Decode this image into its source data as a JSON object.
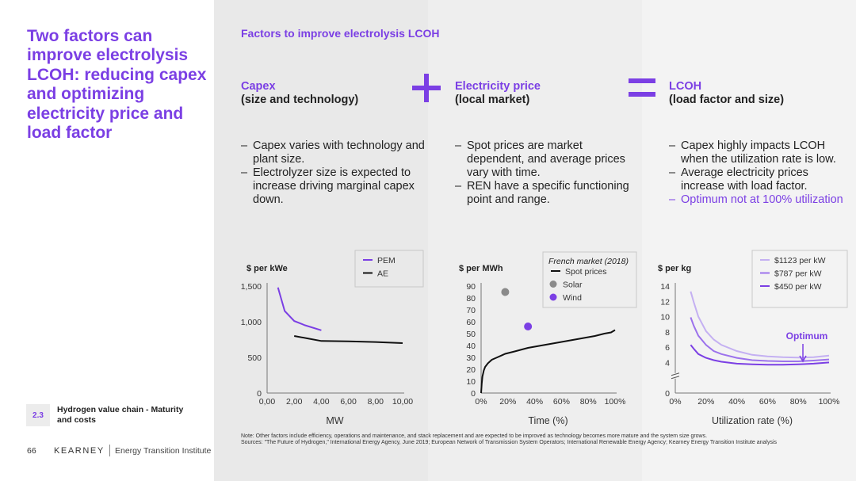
{
  "headline": "Two factors can improve electrolysis LCOH: reducing capex and optimizing electricity price and load factor",
  "section": {
    "number": "2.3",
    "text": "Hydrogen value chain - Maturity and costs"
  },
  "footer": {
    "page": "66",
    "brand": "KEARNEY",
    "sub": "Energy Transition Institute"
  },
  "panel_title": "Factors to improve electrolysis LCOH",
  "columns": [
    {
      "title": "Capex",
      "subtitle": "(size and technology)",
      "bullets": [
        {
          "text": "Capex varies with technology and plant size.",
          "highlight": false
        },
        {
          "text": "Electrolyzer size is expected to increase driving marginal capex down.",
          "highlight": false
        }
      ]
    },
    {
      "title": "Electricity price",
      "subtitle": "(local market)",
      "bullets": [
        {
          "text": "Spot prices are market dependent, and average prices vary with time.",
          "highlight": false
        },
        {
          "text": "REN have a specific functioning point and range.",
          "highlight": false
        }
      ]
    },
    {
      "title": "LCOH",
      "subtitle": "(load factor and size)",
      "bullets": [
        {
          "text": "Capex highly impacts LCOH when the utilization rate is low.",
          "highlight": false
        },
        {
          "text": "Average electricity prices increase with load factor.",
          "highlight": false
        },
        {
          "text": "Optimum not at 100% utilization",
          "highlight": true
        }
      ]
    }
  ],
  "note": "Note: Other factors include efficiency, operations and maintenance, and stack replacement and are expected to be improved as technology becomes more mature and the system size grows.",
  "sources": "Sources: \"The Future of Hydrogen,\" International Energy Agency, June 2019; European Network of Transmission System Operators; International Renewable Energy Agency; Kearney Energy Transition Institute analysis",
  "colors": {
    "accent": "#7b3fe4",
    "light": "#c4b0f2",
    "mid": "#9c72ec",
    "dark": "#7b3fe4",
    "black": "#111111",
    "gray": "#8a8a8a"
  },
  "chart_data": [
    {
      "type": "line",
      "title": "",
      "ylabel": "$ per kWe",
      "xlabel": "MW",
      "xlim": [
        0,
        10
      ],
      "ylim": [
        0,
        1500
      ],
      "xticks": [
        0,
        2,
        4,
        6,
        8,
        10
      ],
      "xtick_labels": [
        "0,00",
        "2,00",
        "4,00",
        "6,00",
        "8,00",
        "10,00"
      ],
      "yticks": [
        0,
        500,
        1000,
        1500
      ],
      "ytick_labels": [
        "0",
        "500",
        "1,000",
        "1,500"
      ],
      "legend_position": "top-right",
      "series": [
        {
          "name": "PEM",
          "color": "#7b3fe4",
          "x": [
            0.8,
            1.3,
            2.0,
            2.8,
            4.0
          ],
          "y": [
            1480,
            1150,
            1010,
            950,
            880
          ]
        },
        {
          "name": "AE",
          "color": "#111111",
          "x": [
            2.0,
            3.0,
            4.0,
            6.0,
            8.0,
            10.0
          ],
          "y": [
            800,
            765,
            730,
            725,
            715,
            700
          ]
        }
      ]
    },
    {
      "type": "line",
      "title": "",
      "ylabel": "$ per MWh",
      "xlabel": "Time (%)",
      "xlim": [
        0,
        100
      ],
      "ylim": [
        0,
        90
      ],
      "xticks": [
        0,
        20,
        40,
        60,
        80,
        100
      ],
      "xtick_labels": [
        "0%",
        "20%",
        "40%",
        "60%",
        "80%",
        "100%"
      ],
      "yticks": [
        0,
        10,
        20,
        30,
        40,
        50,
        60,
        70,
        80,
        90
      ],
      "ytick_labels": [
        "0",
        "10",
        "20",
        "30",
        "40",
        "50",
        "60",
        "70",
        "80",
        "90"
      ],
      "legend_title": "French market (2018)",
      "legend_position": "top-right",
      "series": [
        {
          "name": "Spot prices",
          "color": "#111111",
          "x": [
            0,
            0.5,
            1,
            2,
            3,
            5,
            8,
            12,
            18,
            25,
            35,
            45,
            55,
            65,
            75,
            85,
            92,
            97,
            100
          ],
          "y": [
            0,
            8,
            14,
            19,
            22,
            25,
            28,
            30,
            33,
            35,
            38,
            40,
            42,
            44,
            46,
            48,
            50,
            51,
            53
          ]
        }
      ],
      "points": [
        {
          "name": "Wind",
          "x": 35,
          "y": 56,
          "color": "#7b3fe4"
        },
        {
          "name": "Solar",
          "x": 18,
          "y": 85,
          "color": "#8a8a8a"
        }
      ]
    },
    {
      "type": "line",
      "title": "",
      "ylabel": "$ per kg",
      "xlabel": "Utilization rate (%)",
      "xlim": [
        0,
        100
      ],
      "ylim": [
        0,
        14
      ],
      "xticks": [
        0,
        20,
        40,
        60,
        80,
        100
      ],
      "xtick_labels": [
        "0%",
        "20%",
        "40%",
        "60%",
        "80%",
        "100%"
      ],
      "yticks": [
        0,
        4,
        6,
        8,
        10,
        12,
        14
      ],
      "ytick_labels": [
        "0",
        "4",
        "6",
        "8",
        "10",
        "12",
        "14"
      ],
      "axis_break": true,
      "annotation": {
        "text": "Optimum",
        "x": 83
      },
      "legend_position": "top-right",
      "series": [
        {
          "name": "$1123 per kW",
          "color": "#c4b0f2",
          "x": [
            10,
            12,
            15,
            20,
            25,
            30,
            40,
            50,
            60,
            70,
            80,
            90,
            100
          ],
          "y": [
            13.3,
            11.9,
            10.0,
            8.1,
            7.0,
            6.3,
            5.5,
            5.0,
            4.8,
            4.7,
            4.65,
            4.7,
            4.9
          ]
        },
        {
          "name": "$787 per kW",
          "color": "#9c72ec",
          "x": [
            10,
            12,
            15,
            20,
            25,
            30,
            40,
            50,
            60,
            70,
            80,
            90,
            100
          ],
          "y": [
            9.9,
            8.8,
            7.5,
            6.3,
            5.5,
            5.1,
            4.6,
            4.3,
            4.2,
            4.15,
            4.15,
            4.25,
            4.4
          ]
        },
        {
          "name": "$450 per kW",
          "color": "#7b3fe4",
          "x": [
            10,
            12,
            15,
            20,
            25,
            30,
            40,
            50,
            60,
            70,
            80,
            90,
            100
          ],
          "y": [
            6.3,
            5.8,
            5.1,
            4.6,
            4.3,
            4.1,
            3.85,
            3.75,
            3.7,
            3.7,
            3.75,
            3.85,
            4.0
          ]
        }
      ]
    }
  ]
}
